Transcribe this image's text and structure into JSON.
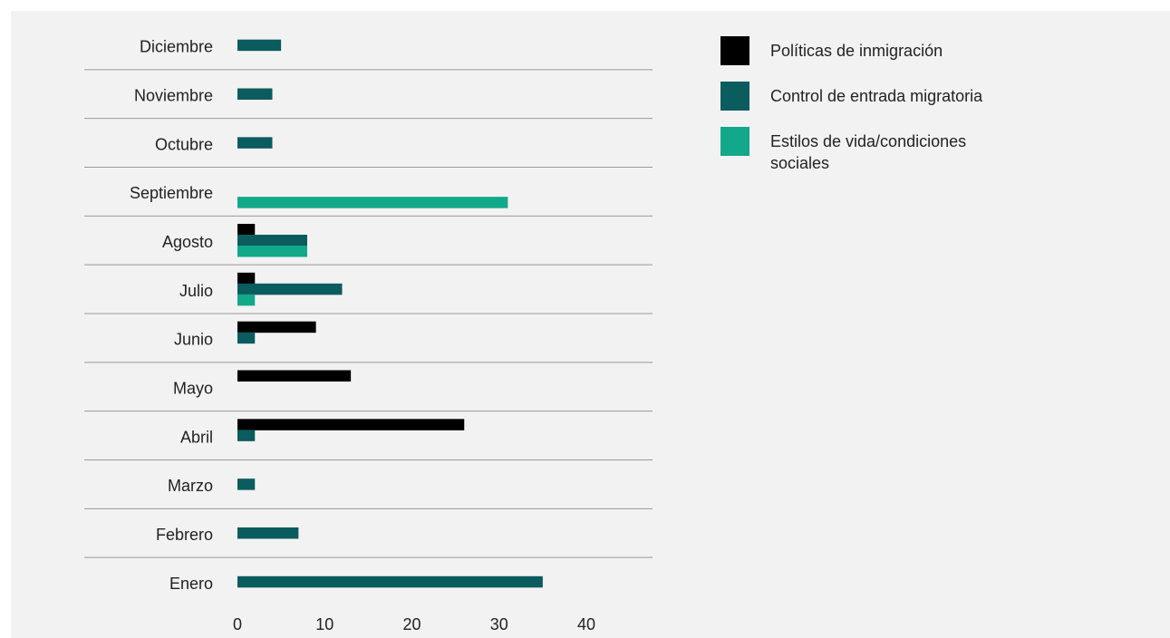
{
  "chart_data": {
    "type": "hbar",
    "categories": [
      "Diciembre",
      "Noviembre",
      "Octubre",
      "Septiembre",
      "Agosto",
      "Julio",
      "Junio",
      "Mayo",
      "Abril",
      "Marzo",
      "Febrero",
      "Enero"
    ],
    "series": [
      {
        "name": "Políticas de inmigración",
        "color": "#000000",
        "values": [
          null,
          null,
          null,
          null,
          2,
          2,
          9,
          13,
          26,
          null,
          null,
          null
        ]
      },
      {
        "name": "Control de entrada migratoria",
        "color": "#0b5c5e",
        "values": [
          5,
          4,
          4,
          null,
          8,
          12,
          2,
          null,
          2,
          2,
          7,
          35
        ]
      },
      {
        "name": "Estilos de vida/condiciones sociales",
        "color": "#12a88a",
        "values": [
          null,
          null,
          null,
          31,
          8,
          2,
          null,
          null,
          null,
          null,
          null,
          null
        ]
      }
    ],
    "xlim": [
      0,
      40
    ],
    "xticks": [
      0,
      10,
      20,
      30,
      40
    ],
    "legend": "right"
  }
}
